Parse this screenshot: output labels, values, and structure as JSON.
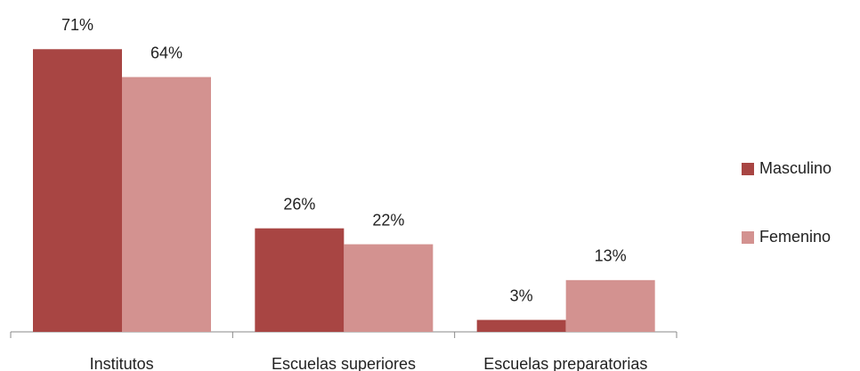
{
  "chart_data": {
    "type": "bar",
    "categories": [
      "Institutos",
      "Escuelas superiores",
      "Escuelas preparatorias"
    ],
    "series": [
      {
        "name": "Masculino",
        "color": "#a84543",
        "values": [
          71,
          26,
          3
        ],
        "value_labels": [
          "71%",
          "26%",
          "3%"
        ]
      },
      {
        "name": "Femenino",
        "color": "#d39290",
        "values": [
          64,
          22,
          13
        ],
        "value_labels": [
          "64%",
          "22%",
          "13%"
        ]
      }
    ],
    "ylim": [
      0,
      80
    ],
    "legend": "right"
  }
}
